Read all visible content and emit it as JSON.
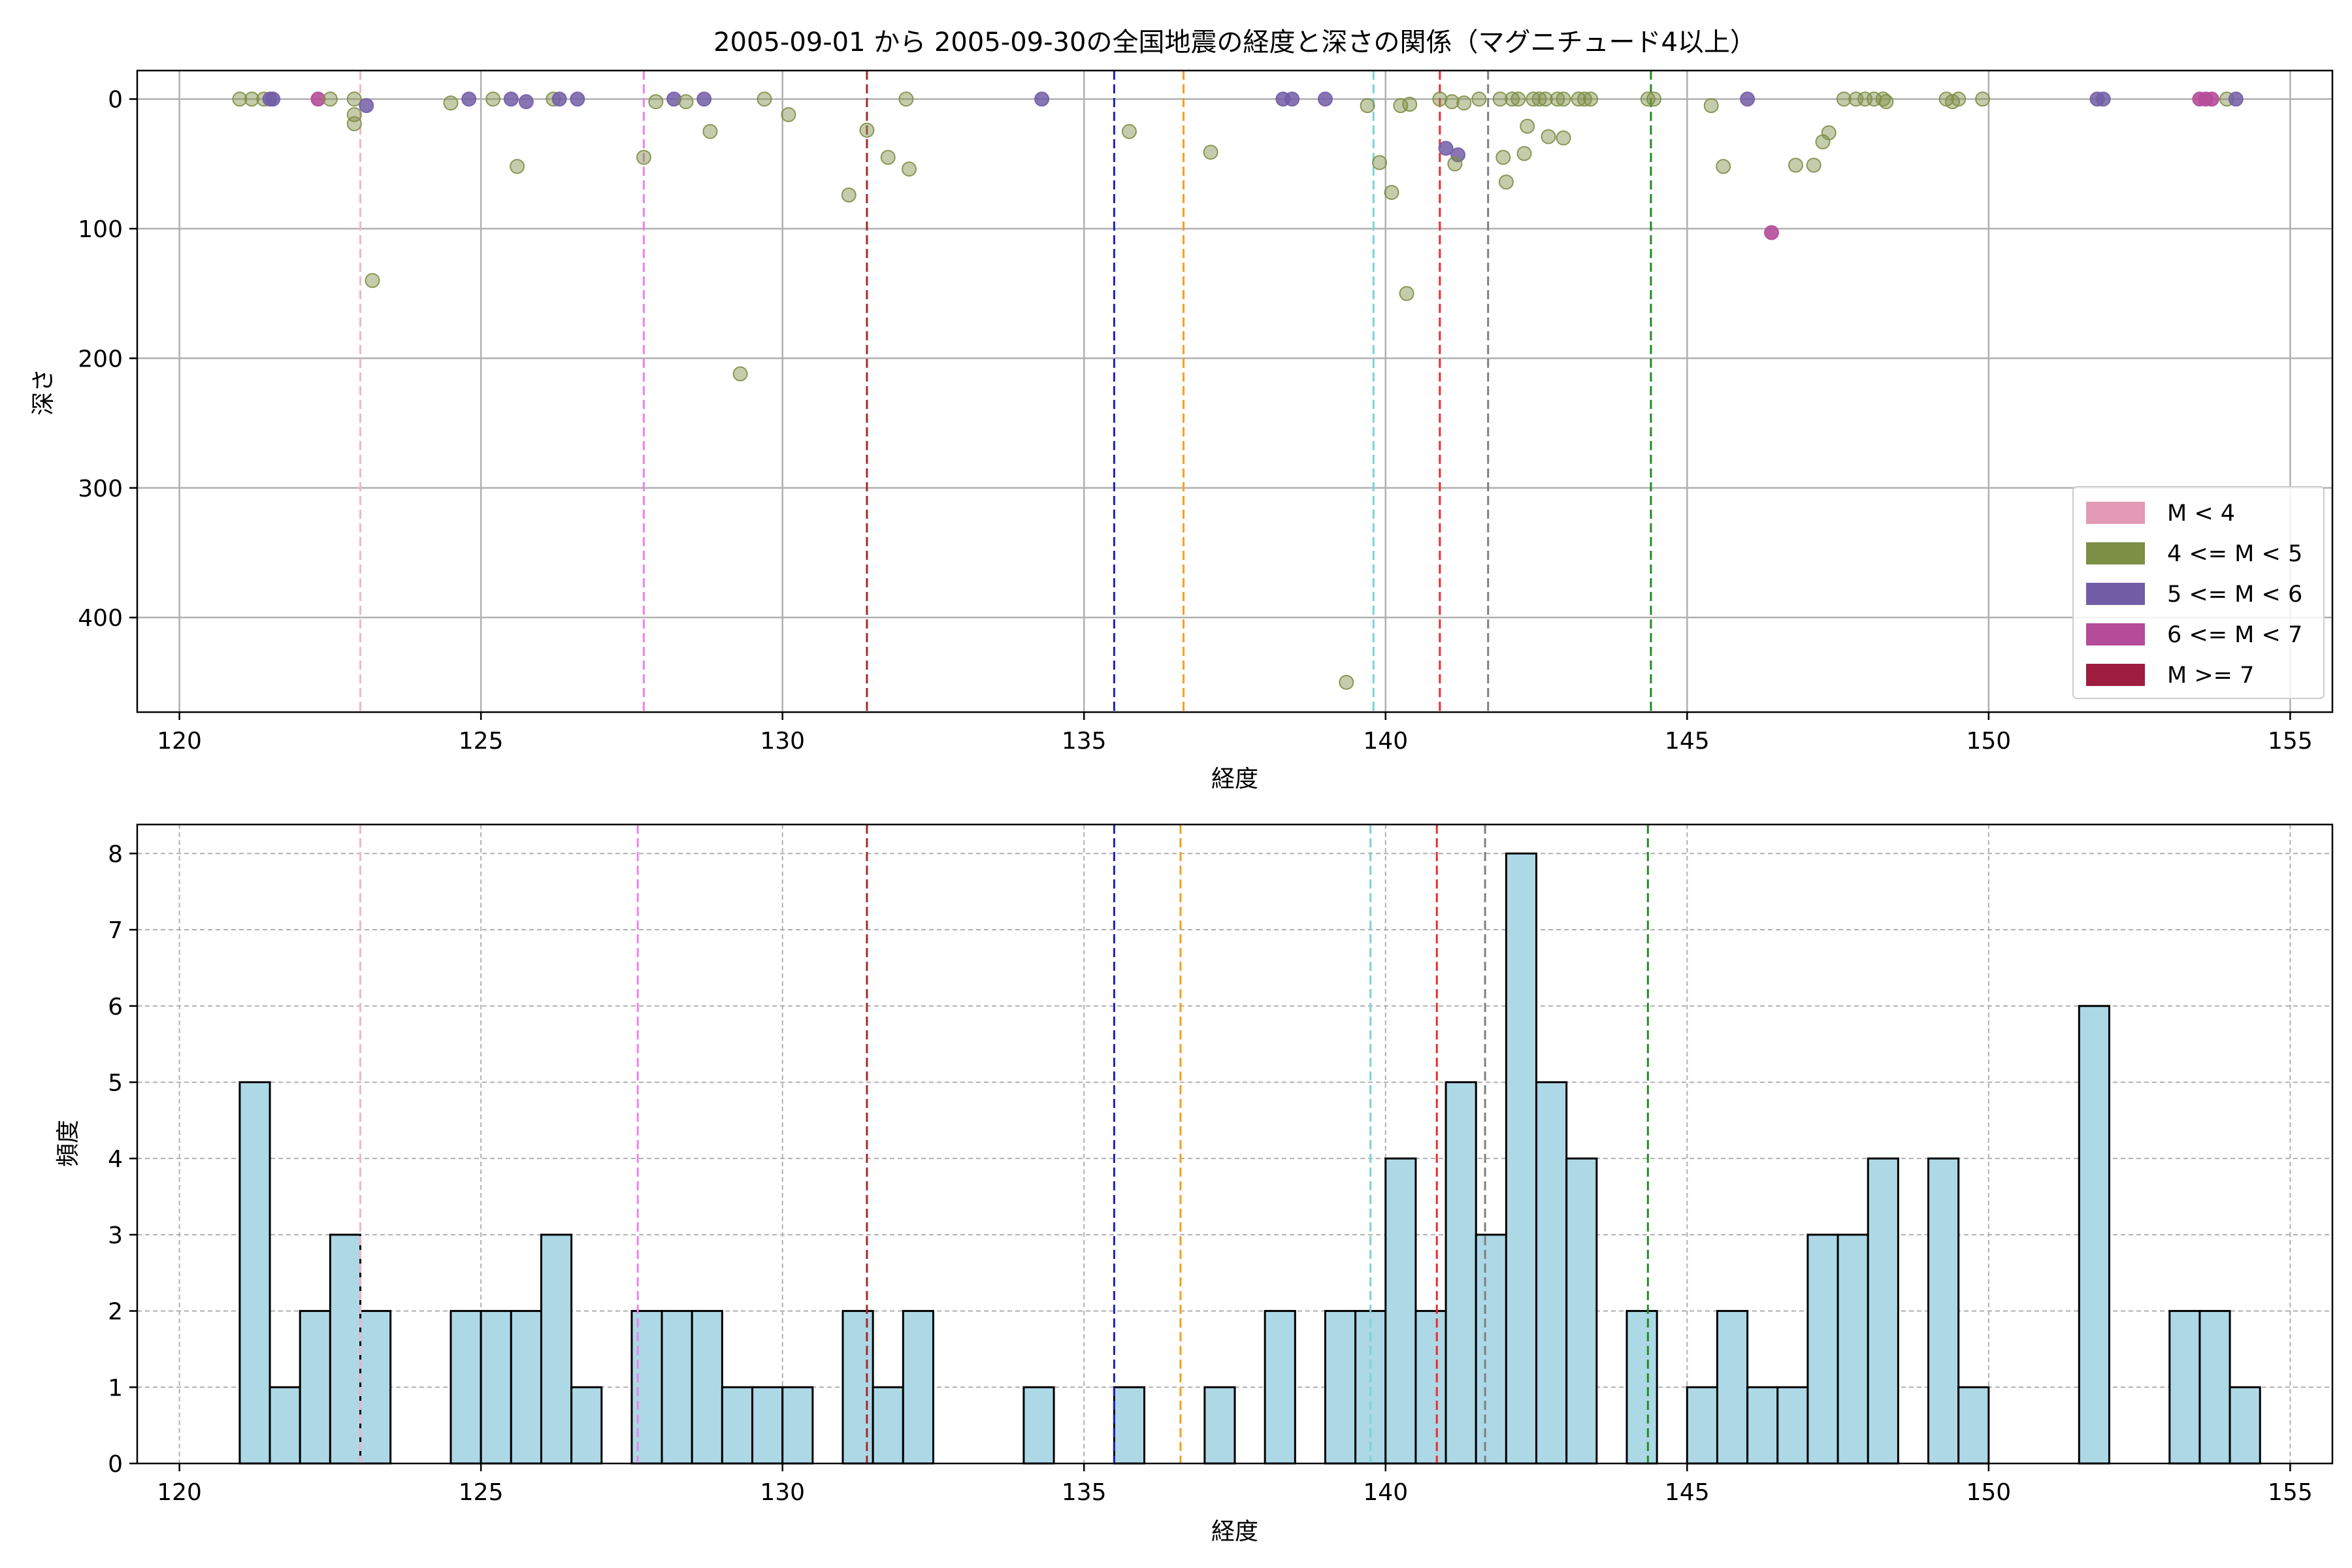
{
  "chart_data": [
    {
      "type": "scatter",
      "title": "2005-09-01 から 2005-09-30の全国地震の経度と深さの関係（マグニチュード4以上）",
      "xlabel": "経度",
      "ylabel": "深さ",
      "xlim": [
        119.3,
        155.7
      ],
      "ylim": [
        473,
        -22
      ],
      "y_inverted": true,
      "grid": true,
      "xticks": [
        120,
        125,
        130,
        135,
        140,
        145,
        150,
        155
      ],
      "yticks": [
        0,
        100,
        200,
        300,
        400
      ],
      "legend_position": "bottom-right",
      "legend": [
        {
          "label": "M < 4",
          "color": "#e39ab4"
        },
        {
          "label": "4 <= M < 5",
          "color": "#7e8f46"
        },
        {
          "label": "5 <= M < 6",
          "color": "#725ea6"
        },
        {
          "label": "6 <= M < 7",
          "color": "#b54c9a"
        },
        {
          "label": "M >= 7",
          "color": "#9e1c40"
        }
      ],
      "reference_lines": [
        {
          "x": 123.0,
          "color": "#f4b6c2"
        },
        {
          "x": 127.7,
          "color": "#ee82ee"
        },
        {
          "x": 131.4,
          "color": "#a52a2a"
        },
        {
          "x": 135.5,
          "color": "#1f1fcc"
        },
        {
          "x": 136.65,
          "color": "#f4a01a"
        },
        {
          "x": 139.8,
          "color": "#7ed3d3"
        },
        {
          "x": 140.9,
          "color": "#ee2b2b"
        },
        {
          "x": 141.7,
          "color": "#808080"
        },
        {
          "x": 144.4,
          "color": "#228b22"
        }
      ],
      "points": [
        {
          "x": 121.0,
          "y": 0,
          "m": "4-5"
        },
        {
          "x": 121.2,
          "y": 0,
          "m": "4-5"
        },
        {
          "x": 121.4,
          "y": 0,
          "m": "4-5"
        },
        {
          "x": 121.5,
          "y": 0,
          "m": "5-6"
        },
        {
          "x": 121.55,
          "y": 0,
          "m": "5-6"
        },
        {
          "x": 122.3,
          "y": 0,
          "m": "6-7"
        },
        {
          "x": 122.5,
          "y": 0,
          "m": "4-5"
        },
        {
          "x": 122.9,
          "y": 0,
          "m": "4-5"
        },
        {
          "x": 122.9,
          "y": 12,
          "m": "4-5"
        },
        {
          "x": 122.9,
          "y": 19,
          "m": "4-5"
        },
        {
          "x": 123.1,
          "y": 5,
          "m": "5-6"
        },
        {
          "x": 123.2,
          "y": 140,
          "m": "4-5"
        },
        {
          "x": 124.5,
          "y": 3,
          "m": "4-5"
        },
        {
          "x": 124.8,
          "y": 0,
          "m": "5-6"
        },
        {
          "x": 125.2,
          "y": 0,
          "m": "4-5"
        },
        {
          "x": 125.5,
          "y": 0,
          "m": "5-6"
        },
        {
          "x": 125.6,
          "y": 52,
          "m": "4-5"
        },
        {
          "x": 125.75,
          "y": 2,
          "m": "5-6"
        },
        {
          "x": 126.2,
          "y": 0,
          "m": "4-5"
        },
        {
          "x": 126.3,
          "y": 0,
          "m": "5-6"
        },
        {
          "x": 126.6,
          "y": 0,
          "m": "5-6"
        },
        {
          "x": 127.7,
          "y": 45,
          "m": "4-5"
        },
        {
          "x": 127.9,
          "y": 2,
          "m": "4-5"
        },
        {
          "x": 128.2,
          "y": 0,
          "m": "5-6"
        },
        {
          "x": 128.4,
          "y": 2,
          "m": "4-5"
        },
        {
          "x": 128.7,
          "y": 0,
          "m": "5-6"
        },
        {
          "x": 128.8,
          "y": 25,
          "m": "4-5"
        },
        {
          "x": 129.3,
          "y": 212,
          "m": "4-5"
        },
        {
          "x": 129.7,
          "y": 0,
          "m": "4-5"
        },
        {
          "x": 130.1,
          "y": 12,
          "m": "4-5"
        },
        {
          "x": 131.1,
          "y": 74,
          "m": "4-5"
        },
        {
          "x": 131.4,
          "y": 24,
          "m": "4-5"
        },
        {
          "x": 131.75,
          "y": 45,
          "m": "4-5"
        },
        {
          "x": 132.1,
          "y": 54,
          "m": "4-5"
        },
        {
          "x": 132.05,
          "y": 0,
          "m": "4-5"
        },
        {
          "x": 134.3,
          "y": 0,
          "m": "5-6"
        },
        {
          "x": 135.75,
          "y": 25,
          "m": "4-5"
        },
        {
          "x": 137.1,
          "y": 41,
          "m": "4-5"
        },
        {
          "x": 138.3,
          "y": 0,
          "m": "5-6"
        },
        {
          "x": 138.45,
          "y": 0,
          "m": "5-6"
        },
        {
          "x": 139.0,
          "y": 0,
          "m": "5-6"
        },
        {
          "x": 139.35,
          "y": 450,
          "m": "4-5"
        },
        {
          "x": 139.7,
          "y": 5,
          "m": "4-5"
        },
        {
          "x": 139.9,
          "y": 49,
          "m": "4-5"
        },
        {
          "x": 140.1,
          "y": 72,
          "m": "4-5"
        },
        {
          "x": 140.25,
          "y": 5,
          "m": "4-5"
        },
        {
          "x": 140.4,
          "y": 4,
          "m": "4-5"
        },
        {
          "x": 140.35,
          "y": 150,
          "m": "4-5"
        },
        {
          "x": 140.9,
          "y": 0,
          "m": "4-5"
        },
        {
          "x": 141.0,
          "y": 38,
          "m": "5-6"
        },
        {
          "x": 141.2,
          "y": 43,
          "m": "5-6"
        },
        {
          "x": 141.15,
          "y": 50,
          "m": "4-5"
        },
        {
          "x": 141.3,
          "y": 3,
          "m": "4-5"
        },
        {
          "x": 141.1,
          "y": 2,
          "m": "4-5"
        },
        {
          "x": 141.55,
          "y": 0,
          "m": "4-5"
        },
        {
          "x": 141.9,
          "y": 0,
          "m": "4-5"
        },
        {
          "x": 141.95,
          "y": 45,
          "m": "4-5"
        },
        {
          "x": 142.0,
          "y": 64,
          "m": "4-5"
        },
        {
          "x": 142.1,
          "y": 0,
          "m": "4-5"
        },
        {
          "x": 142.2,
          "y": 0,
          "m": "4-5"
        },
        {
          "x": 142.3,
          "y": 42,
          "m": "4-5"
        },
        {
          "x": 142.35,
          "y": 21,
          "m": "4-5"
        },
        {
          "x": 142.45,
          "y": 0,
          "m": "4-5"
        },
        {
          "x": 142.55,
          "y": 0,
          "m": "4-5"
        },
        {
          "x": 142.65,
          "y": 0,
          "m": "4-5"
        },
        {
          "x": 142.7,
          "y": 29,
          "m": "4-5"
        },
        {
          "x": 142.85,
          "y": 0,
          "m": "4-5"
        },
        {
          "x": 142.95,
          "y": 0,
          "m": "4-5"
        },
        {
          "x": 142.95,
          "y": 30,
          "m": "4-5"
        },
        {
          "x": 143.2,
          "y": 0,
          "m": "4-5"
        },
        {
          "x": 143.3,
          "y": 0,
          "m": "4-5"
        },
        {
          "x": 143.4,
          "y": 0,
          "m": "4-5"
        },
        {
          "x": 144.35,
          "y": 0,
          "m": "4-5"
        },
        {
          "x": 144.45,
          "y": 0,
          "m": "4-5"
        },
        {
          "x": 145.4,
          "y": 5,
          "m": "4-5"
        },
        {
          "x": 145.6,
          "y": 52,
          "m": "4-5"
        },
        {
          "x": 146.0,
          "y": 0,
          "m": "5-6"
        },
        {
          "x": 146.4,
          "y": 103,
          "m": "6-7"
        },
        {
          "x": 146.8,
          "y": 51,
          "m": "4-5"
        },
        {
          "x": 147.1,
          "y": 51,
          "m": "4-5"
        },
        {
          "x": 147.25,
          "y": 33,
          "m": "4-5"
        },
        {
          "x": 147.35,
          "y": 26,
          "m": "4-5"
        },
        {
          "x": 147.6,
          "y": 0,
          "m": "4-5"
        },
        {
          "x": 147.8,
          "y": 0,
          "m": "4-5"
        },
        {
          "x": 147.95,
          "y": 0,
          "m": "4-5"
        },
        {
          "x": 148.1,
          "y": 0,
          "m": "4-5"
        },
        {
          "x": 148.25,
          "y": 0,
          "m": "4-5"
        },
        {
          "x": 148.3,
          "y": 2,
          "m": "4-5"
        },
        {
          "x": 149.3,
          "y": 0,
          "m": "4-5"
        },
        {
          "x": 149.4,
          "y": 2,
          "m": "4-5"
        },
        {
          "x": 149.5,
          "y": 0,
          "m": "4-5"
        },
        {
          "x": 149.9,
          "y": 0,
          "m": "4-5"
        },
        {
          "x": 151.8,
          "y": 0,
          "m": "5-6"
        },
        {
          "x": 151.9,
          "y": 0,
          "m": "5-6"
        },
        {
          "x": 153.5,
          "y": 0,
          "m": "6-7"
        },
        {
          "x": 153.6,
          "y": 0,
          "m": "6-7"
        },
        {
          "x": 153.7,
          "y": 0,
          "m": "6-7"
        },
        {
          "x": 153.95,
          "y": 0,
          "m": "4-5"
        },
        {
          "x": 154.1,
          "y": 0,
          "m": "5-6"
        }
      ]
    },
    {
      "type": "bar",
      "title": "",
      "xlabel": "経度",
      "ylabel": "頻度",
      "xlim": [
        119.3,
        155.7
      ],
      "ylim": [
        0,
        8.38
      ],
      "grid": true,
      "xticks": [
        120,
        125,
        130,
        135,
        140,
        145,
        150,
        155
      ],
      "yticks": [
        0,
        1,
        2,
        3,
        4,
        5,
        6,
        7,
        8
      ],
      "bin_start": 121.0,
      "bin_width": 0.5,
      "bar_color": "#add8e6",
      "bin_counts": [
        5,
        1,
        2,
        3,
        2,
        0,
        0,
        2,
        2,
        2,
        3,
        1,
        0,
        2,
        2,
        2,
        1,
        1,
        1,
        0,
        2,
        1,
        2,
        0,
        0,
        0,
        1,
        0,
        0,
        1,
        0,
        0,
        1,
        0,
        2,
        0,
        2,
        2,
        4,
        2,
        5,
        3,
        8,
        5,
        4,
        0,
        2,
        0,
        1,
        2,
        1,
        1,
        3,
        3,
        4,
        0,
        4,
        1,
        0,
        0,
        0,
        6,
        0,
        0,
        2,
        2,
        1
      ],
      "reference_lines": [
        {
          "x": 123.0,
          "color": "#f4b6c2"
        },
        {
          "x": 127.6,
          "color": "#ee82ee"
        },
        {
          "x": 131.4,
          "color": "#a52a2a"
        },
        {
          "x": 135.5,
          "color": "#1f1fcc"
        },
        {
          "x": 136.6,
          "color": "#f4a01a"
        },
        {
          "x": 139.75,
          "color": "#7ed3d3"
        },
        {
          "x": 140.85,
          "color": "#ee2b2b"
        },
        {
          "x": 141.65,
          "color": "#808080"
        },
        {
          "x": 144.35,
          "color": "#228b22"
        }
      ]
    }
  ]
}
